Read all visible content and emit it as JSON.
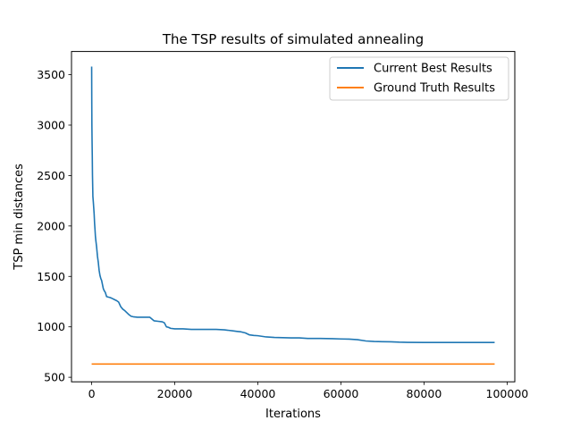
{
  "chart_data": {
    "type": "line",
    "title": "The TSP results of simulated annealing",
    "xlabel": "Iterations",
    "ylabel": "TSP min distances",
    "xlim": [
      -4850,
      101850
    ],
    "ylim": [
      455,
      3730
    ],
    "xticks": [
      0,
      20000,
      40000,
      60000,
      80000,
      100000
    ],
    "yticks": [
      500,
      1000,
      1500,
      2000,
      2500,
      3000,
      3500
    ],
    "grid": false,
    "legend_position": "top-right",
    "colors": {
      "series_0": "#1f77b4",
      "series_1": "#ff7f0e"
    },
    "series": [
      {
        "name": "Current Best Results",
        "x": [
          0,
          30,
          60,
          100,
          150,
          200,
          300,
          400,
          500,
          600,
          700,
          800,
          900,
          1000,
          1200,
          1400,
          1600,
          1800,
          2000,
          2200,
          2400,
          2600,
          2800,
          3000,
          3300,
          3600,
          4000,
          4500,
          5000,
          5500,
          6000,
          6500,
          7000,
          7500,
          8000,
          8500,
          9000,
          9500,
          10000,
          11000,
          12000,
          13000,
          14000,
          15000,
          16000,
          17000,
          17500,
          18000,
          18500,
          19000,
          20000,
          22000,
          24000,
          26000,
          28000,
          30000,
          32000,
          33000,
          34000,
          35000,
          36000,
          37000,
          38000,
          39000,
          40000,
          42000,
          44000,
          46000,
          48000,
          50000,
          52000,
          55000,
          58000,
          60000,
          62000,
          64000,
          66000,
          68000,
          70000,
          72000,
          74000,
          76000,
          80000,
          85000,
          90000,
          95000,
          97000
        ],
        "y": [
          3580,
          3250,
          3000,
          2850,
          2700,
          2500,
          2290,
          2240,
          2180,
          2120,
          2030,
          1970,
          1900,
          1860,
          1790,
          1700,
          1640,
          1560,
          1510,
          1480,
          1460,
          1420,
          1380,
          1360,
          1340,
          1300,
          1295,
          1290,
          1280,
          1270,
          1260,
          1245,
          1200,
          1175,
          1160,
          1140,
          1120,
          1105,
          1100,
          1095,
          1095,
          1095,
          1095,
          1060,
          1055,
          1050,
          1040,
          1000,
          995,
          985,
          980,
          980,
          975,
          975,
          975,
          975,
          970,
          965,
          960,
          955,
          950,
          940,
          920,
          915,
          912,
          900,
          895,
          893,
          890,
          890,
          885,
          885,
          883,
          880,
          878,
          873,
          860,
          855,
          853,
          852,
          848,
          846,
          845,
          845,
          845,
          845,
          845
        ]
      },
      {
        "name": "Ground Truth Results",
        "x": [
          0,
          97000
        ],
        "y": [
          631,
          631
        ]
      }
    ]
  }
}
